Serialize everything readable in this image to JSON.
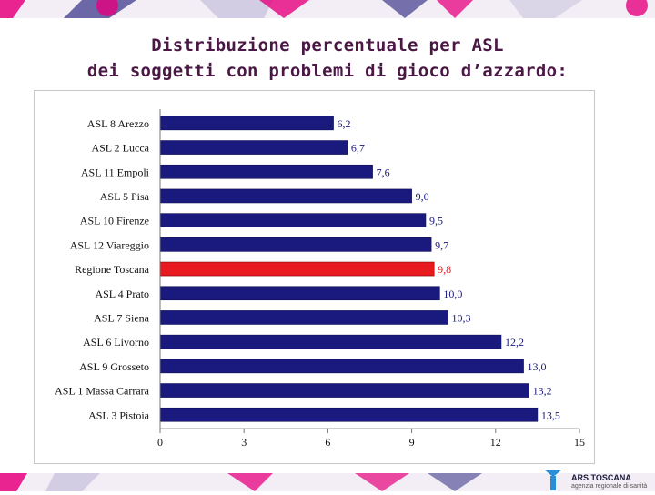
{
  "slide": {
    "title_line1": "Distribuzione percentuale per ASL",
    "title_line2": "dei soggetti con problemi di gioco d’azzardo:"
  },
  "logo": {
    "name": "ARS TOSCANA",
    "subtitle": "agenzia regionale di sanità"
  },
  "colors": {
    "bar": "#1a1a7e",
    "highlight_bar": "#e8191f",
    "highlight_label": "#e8191f",
    "title": "#4b1846",
    "band_pink": "#e6007e",
    "band_blue": "#3f3a8c"
  },
  "chart_data": {
    "type": "bar",
    "orientation": "horizontal",
    "title": "",
    "xlabel": "",
    "ylabel": "",
    "categories": [
      "ASL 8 Arezzo",
      "ASL 2 Lucca",
      "ASL 11 Empoli",
      "ASL 5 Pisa",
      "ASL 10 Firenze",
      "ASL 12 Viareggio",
      "Regione Toscana",
      "ASL 4 Prato",
      "ASL 7 Siena",
      "ASL 6 Livorno",
      "ASL 9 Grosseto",
      "ASL 1 Massa Carrara",
      "ASL 3 Pistoia"
    ],
    "values": [
      6.2,
      6.7,
      7.6,
      9.0,
      9.5,
      9.7,
      9.8,
      10.0,
      10.3,
      12.2,
      13.0,
      13.2,
      13.5
    ],
    "value_labels": [
      "6,2",
      "6,7",
      "7,6",
      "9,0",
      "9,5",
      "9,7",
      "9,8",
      "10,0",
      "10,3",
      "12,2",
      "13,0",
      "13,2",
      "13,5"
    ],
    "highlight_category": "Regione Toscana",
    "xlim": [
      0,
      15
    ],
    "xticks": [
      0,
      3,
      6,
      9,
      12,
      15
    ],
    "grid": false,
    "legend": "none"
  }
}
